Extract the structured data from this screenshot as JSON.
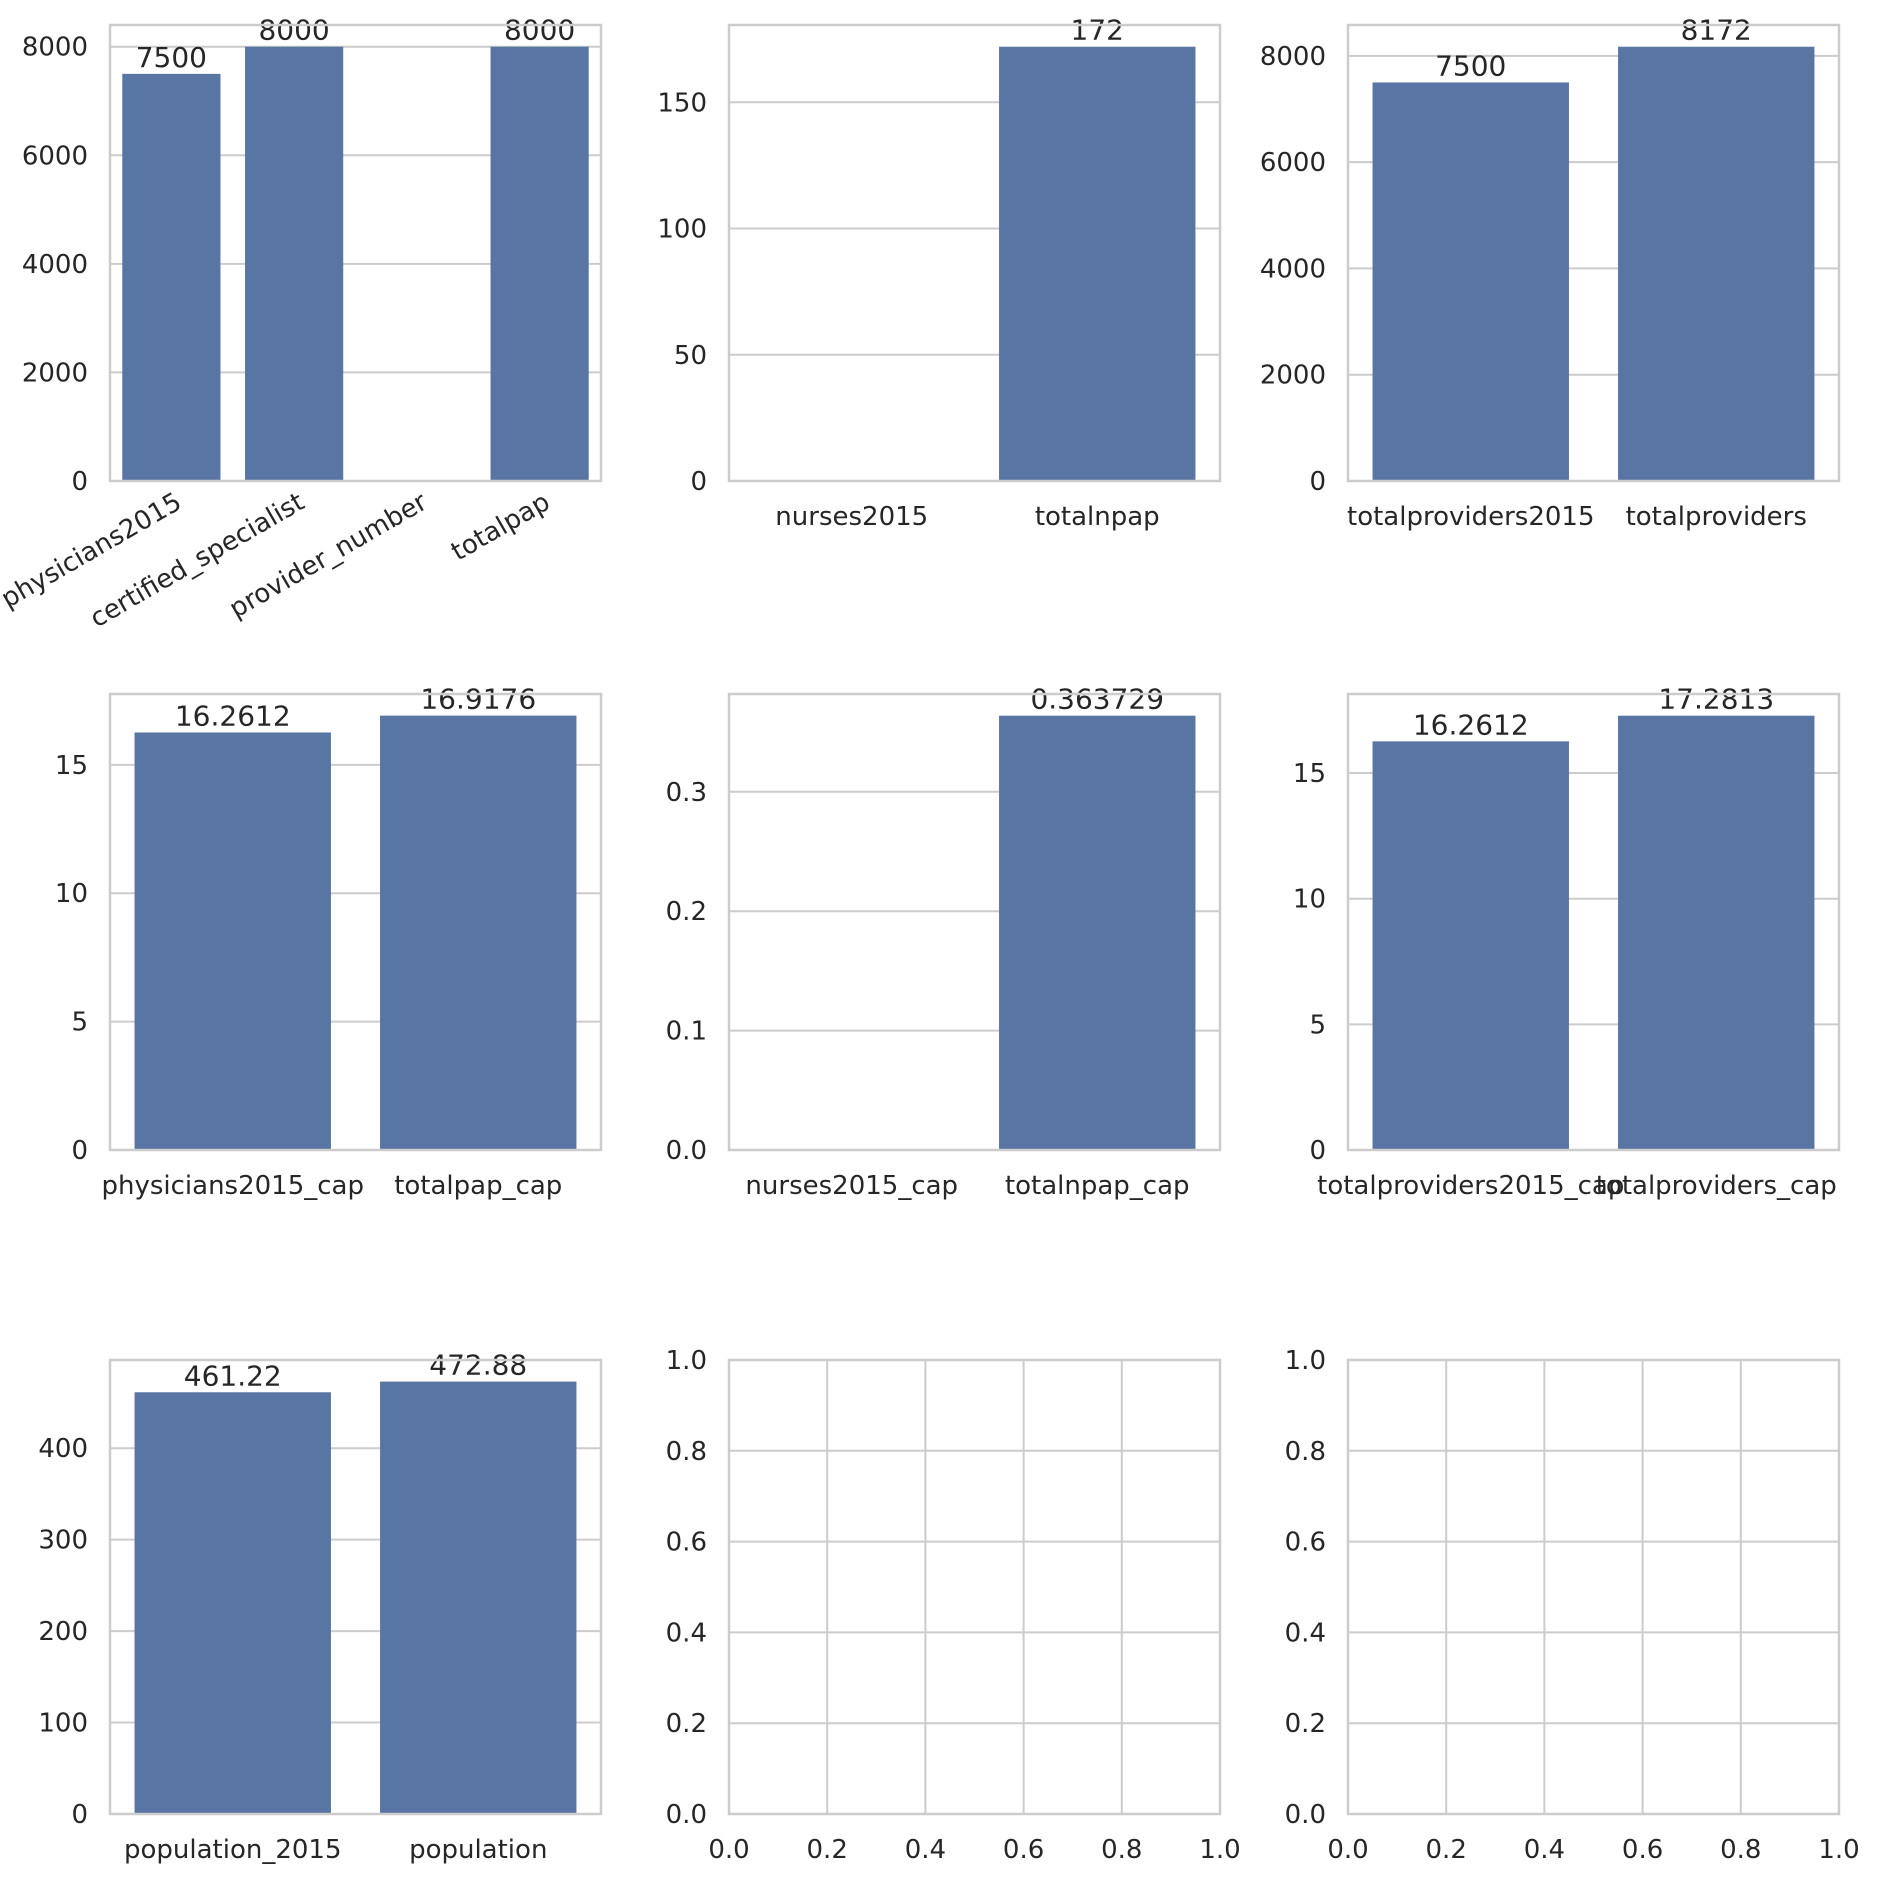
{
  "colors": {
    "bar": "#5975a4",
    "grid": "#cccccc",
    "spine": "#cccccc",
    "text": "#262626",
    "background": "#ffffff"
  },
  "chart_data": [
    {
      "type": "bar",
      "categories": [
        "physicians2015",
        "certified_specialist",
        "provider_number",
        "totalpap"
      ],
      "values": [
        7500,
        8000,
        null,
        8000
      ],
      "data_labels": [
        "7500",
        "8000",
        "",
        "8000"
      ],
      "yticks": [
        0,
        2000,
        4000,
        6000,
        8000
      ],
      "ylim": [
        0,
        8400
      ],
      "x_tick_rotation": 30,
      "grid": true
    },
    {
      "type": "bar",
      "categories": [
        "nurses2015",
        "totalnpap"
      ],
      "values": [
        null,
        172
      ],
      "data_labels": [
        "",
        "172"
      ],
      "yticks": [
        0,
        50,
        100,
        150
      ],
      "ylim": [
        0,
        180.6
      ],
      "grid": true
    },
    {
      "type": "bar",
      "categories": [
        "totalproviders2015",
        "totalproviders"
      ],
      "values": [
        7500,
        8172
      ],
      "data_labels": [
        "7500",
        "8172"
      ],
      "yticks": [
        0,
        2000,
        4000,
        6000,
        8000
      ],
      "ylim": [
        0,
        8580.6
      ],
      "grid": true
    },
    {
      "type": "bar",
      "categories": [
        "physicians2015_cap",
        "totalpap_cap"
      ],
      "values": [
        16.2612,
        16.9176
      ],
      "data_labels": [
        "16.2612",
        "16.9176"
      ],
      "yticks": [
        0,
        5,
        10,
        15
      ],
      "ylim": [
        0,
        17.76
      ],
      "grid": true
    },
    {
      "type": "bar",
      "categories": [
        "nurses2015_cap",
        "totalnpap_cap"
      ],
      "values": [
        null,
        0.363729
      ],
      "data_labels": [
        "",
        "0.363729"
      ],
      "yticks": [
        0.0,
        0.1,
        0.2,
        0.3
      ],
      "ytick_labels": [
        "0.0",
        "0.1",
        "0.2",
        "0.3"
      ],
      "ylim": [
        0,
        0.3819
      ],
      "grid": true
    },
    {
      "type": "bar",
      "categories": [
        "totalproviders2015_cap",
        "totalproviders_cap"
      ],
      "values": [
        16.2612,
        17.2813
      ],
      "data_labels": [
        "16.2612",
        "17.2813"
      ],
      "yticks": [
        0,
        5,
        10,
        15
      ],
      "ylim": [
        0,
        18.145
      ],
      "grid": true
    },
    {
      "type": "bar",
      "categories": [
        "population_2015",
        "population"
      ],
      "values": [
        461.22,
        472.88
      ],
      "data_labels": [
        "461.22",
        "472.88"
      ],
      "yticks": [
        0,
        100,
        200,
        300,
        400
      ],
      "ylim": [
        0,
        496.5
      ],
      "grid": true
    },
    {
      "type": "empty",
      "xticks": [
        0.0,
        0.2,
        0.4,
        0.6,
        0.8,
        1.0
      ],
      "yticks": [
        0.0,
        0.2,
        0.4,
        0.6,
        0.8,
        1.0
      ],
      "xtick_labels": [
        "0.0",
        "0.2",
        "0.4",
        "0.6",
        "0.8",
        "1.0"
      ],
      "ytick_labels": [
        "0.0",
        "0.2",
        "0.4",
        "0.6",
        "0.8",
        "1.0"
      ],
      "xlim": [
        0,
        1
      ],
      "ylim": [
        0,
        1
      ],
      "grid": true
    },
    {
      "type": "empty",
      "xticks": [
        0.0,
        0.2,
        0.4,
        0.6,
        0.8,
        1.0
      ],
      "yticks": [
        0.0,
        0.2,
        0.4,
        0.6,
        0.8,
        1.0
      ],
      "xtick_labels": [
        "0.0",
        "0.2",
        "0.4",
        "0.6",
        "0.8",
        "1.0"
      ],
      "ytick_labels": [
        "0.0",
        "0.2",
        "0.4",
        "0.6",
        "0.8",
        "1.0"
      ],
      "xlim": [
        0,
        1
      ],
      "ylim": [
        0,
        1
      ],
      "grid": true
    }
  ]
}
